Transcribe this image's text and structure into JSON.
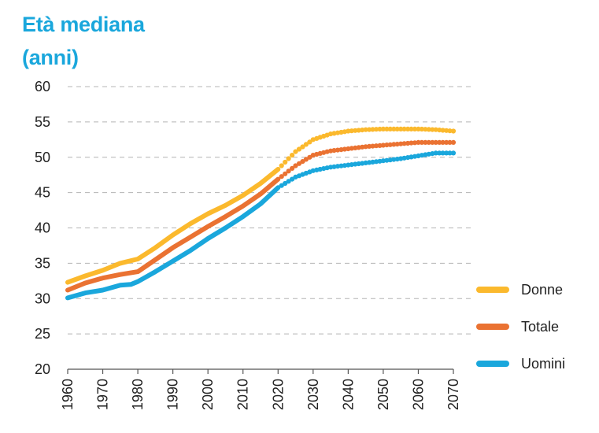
{
  "chart_data": {
    "type": "line",
    "title": "Età mediana",
    "subtitle": "(anni)",
    "xlim": [
      1960,
      2070
    ],
    "ylim": [
      20,
      60
    ],
    "x_ticks": [
      "1960",
      "1970",
      "1980",
      "1990",
      "2000",
      "2010",
      "2020",
      "2030",
      "2040",
      "2050",
      "2060",
      "2070"
    ],
    "y_ticks": [
      "60",
      "55",
      "50",
      "45",
      "40",
      "35",
      "30",
      "25",
      "20"
    ],
    "grid": "horizontal dashed",
    "legend_position": "right",
    "observed_until": 2020,
    "series": [
      {
        "name": "Donne",
        "color": "#fbb92d",
        "points": [
          [
            1960,
            32.3
          ],
          [
            1965,
            33.2
          ],
          [
            1970,
            34.0
          ],
          [
            1975,
            35.0
          ],
          [
            1980,
            35.6
          ],
          [
            1985,
            37.2
          ],
          [
            1990,
            39.0
          ],
          [
            1995,
            40.6
          ],
          [
            2000,
            42.0
          ],
          [
            2005,
            43.2
          ],
          [
            2010,
            44.6
          ],
          [
            2015,
            46.3
          ],
          [
            2020,
            48.3
          ],
          [
            2025,
            50.8
          ],
          [
            2030,
            52.5
          ],
          [
            2035,
            53.3
          ],
          [
            2040,
            53.7
          ],
          [
            2045,
            53.9
          ],
          [
            2050,
            54.0
          ],
          [
            2055,
            54.0
          ],
          [
            2060,
            54.0
          ],
          [
            2065,
            53.9
          ],
          [
            2070,
            53.7
          ]
        ]
      },
      {
        "name": "Totale",
        "color": "#ea7232",
        "points": [
          [
            1960,
            31.2
          ],
          [
            1965,
            32.2
          ],
          [
            1970,
            32.9
          ],
          [
            1975,
            33.4
          ],
          [
            1980,
            33.8
          ],
          [
            1985,
            35.5
          ],
          [
            1990,
            37.2
          ],
          [
            1995,
            38.7
          ],
          [
            2000,
            40.2
          ],
          [
            2005,
            41.6
          ],
          [
            2010,
            43.1
          ],
          [
            2015,
            44.8
          ],
          [
            2020,
            46.9
          ],
          [
            2025,
            48.8
          ],
          [
            2030,
            50.3
          ],
          [
            2035,
            50.9
          ],
          [
            2040,
            51.2
          ],
          [
            2045,
            51.5
          ],
          [
            2050,
            51.7
          ],
          [
            2055,
            51.9
          ],
          [
            2060,
            52.1
          ],
          [
            2065,
            52.1
          ],
          [
            2070,
            52.1
          ]
        ]
      },
      {
        "name": "Uomini",
        "color": "#1aa7dc",
        "points": [
          [
            1960,
            30.1
          ],
          [
            1965,
            30.8
          ],
          [
            1970,
            31.2
          ],
          [
            1975,
            31.9
          ],
          [
            1978,
            32.0
          ],
          [
            1980,
            32.4
          ],
          [
            1985,
            33.8
          ],
          [
            1990,
            35.3
          ],
          [
            1995,
            36.8
          ],
          [
            2000,
            38.5
          ],
          [
            2005,
            40.0
          ],
          [
            2010,
            41.6
          ],
          [
            2015,
            43.4
          ],
          [
            2020,
            45.7
          ],
          [
            2025,
            47.2
          ],
          [
            2030,
            48.1
          ],
          [
            2035,
            48.6
          ],
          [
            2040,
            48.9
          ],
          [
            2045,
            49.2
          ],
          [
            2050,
            49.5
          ],
          [
            2055,
            49.8
          ],
          [
            2060,
            50.2
          ],
          [
            2065,
            50.6
          ],
          [
            2070,
            50.6
          ]
        ]
      }
    ]
  }
}
